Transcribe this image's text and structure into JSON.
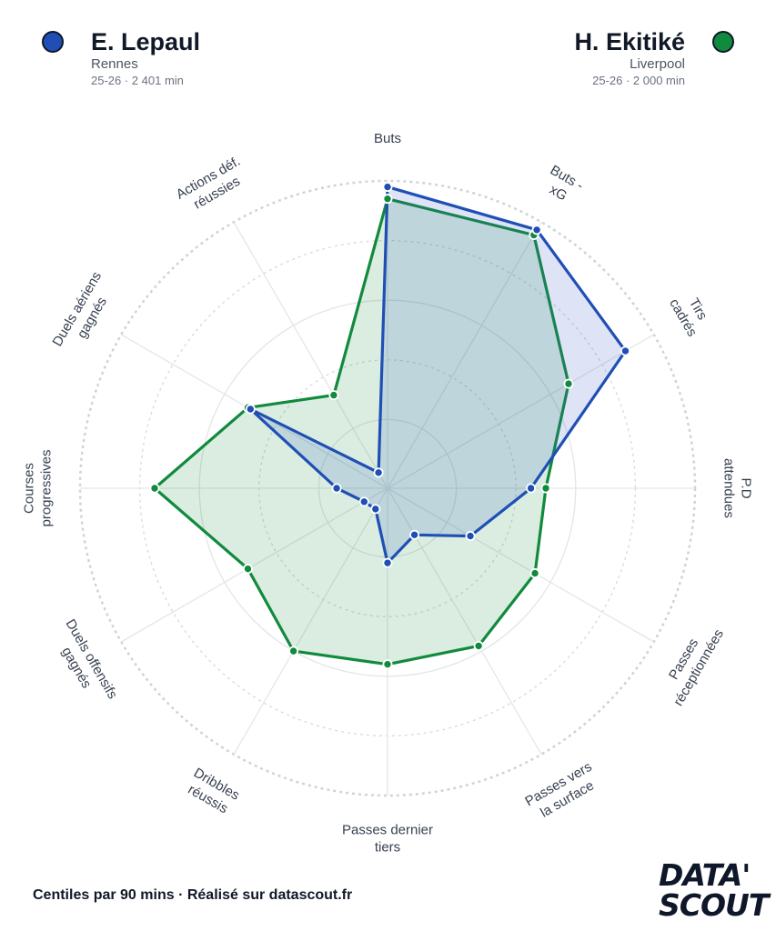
{
  "players": [
    {
      "name": "E. Lepaul",
      "club": "Rennes",
      "meta": "25-26 · 2 401 min",
      "color": "#1f4fb5",
      "fill": "rgba(61,92,200,0.17)"
    },
    {
      "name": "H. Ekitiké",
      "club": "Liverpool",
      "meta": "25-26 · 2 000 min",
      "color": "#128a3e",
      "fill": "rgba(34,150,70,0.17)"
    }
  ],
  "chart_data": {
    "type": "radar",
    "axes": [
      [
        "Buts"
      ],
      [
        "Buts -",
        "xG"
      ],
      [
        "Tirs",
        "cadrés"
      ],
      [
        "P.D",
        "attendues"
      ],
      [
        "Passes",
        "réceptionnées"
      ],
      [
        "Passes vers",
        "la surface"
      ],
      [
        "Passes dernier",
        "tiers"
      ],
      [
        "Dribbles",
        "réussis"
      ],
      [
        "Duels offensifs",
        "gagnés"
      ],
      [
        "Courses",
        "progressives"
      ],
      [
        "Duels aériens",
        "gagnés"
      ],
      [
        "Actions déf.",
        "réussies"
      ]
    ],
    "range": [
      0,
      100
    ],
    "series": [
      {
        "name": "E. Lepaul",
        "values": [
          98,
          97,
          89,
          45,
          29,
          15,
          22,
          5,
          6,
          14,
          50,
          3
        ]
      },
      {
        "name": "H. Ekitiké",
        "values": [
          94,
          95,
          67,
          50,
          54,
          58,
          56,
          60,
          51,
          75,
          51,
          33
        ]
      }
    ]
  },
  "footer": "Centiles par 90 mins · Réalisé sur datascout.fr",
  "logo": {
    "line1": "DATA'",
    "line2": "SCOUT"
  }
}
